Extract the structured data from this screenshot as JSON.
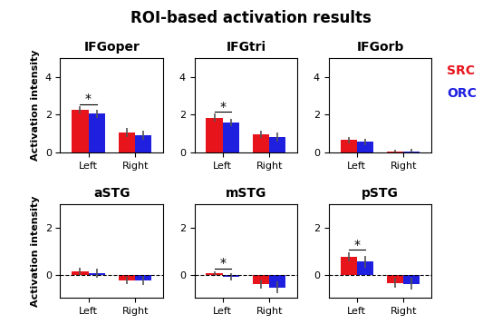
{
  "title": "ROI-based activation results",
  "chart_data": [
    {
      "type": "bar",
      "title": "IFGoper",
      "y_label": "Activation intensity",
      "categories": [
        "Left",
        "Right"
      ],
      "series": [
        {
          "name": "SRC",
          "color": "#e8141c",
          "values": [
            2.25,
            1.05
          ],
          "errors": [
            0.2,
            0.25
          ]
        },
        {
          "name": "ORC",
          "color": "#1f1fe0",
          "values": [
            2.05,
            0.9
          ],
          "errors": [
            0.2,
            0.25
          ]
        }
      ],
      "annotations": [
        {
          "text": "*",
          "category": "Left"
        }
      ],
      "ylim": [
        0,
        5
      ],
      "yticks": [
        0,
        2,
        4
      ]
    },
    {
      "type": "bar",
      "title": "IFGtri",
      "categories": [
        "Left",
        "Right"
      ],
      "series": [
        {
          "name": "SRC",
          "color": "#e8141c",
          "values": [
            1.85,
            0.95
          ],
          "errors": [
            0.2,
            0.2
          ]
        },
        {
          "name": "ORC",
          "color": "#1f1fe0",
          "values": [
            1.6,
            0.8
          ],
          "errors": [
            0.2,
            0.25
          ]
        }
      ],
      "annotations": [
        {
          "text": "*",
          "category": "Left"
        }
      ],
      "ylim": [
        0,
        5
      ],
      "yticks": [
        0,
        2,
        4
      ]
    },
    {
      "type": "bar",
      "title": "IFGorb",
      "legend": "right",
      "categories": [
        "Left",
        "Right"
      ],
      "series": [
        {
          "name": "SRC",
          "color": "#e8141c",
          "values": [
            0.65,
            0.05
          ],
          "errors": [
            0.15,
            0.1
          ]
        },
        {
          "name": "ORC",
          "color": "#1f1fe0",
          "values": [
            0.55,
            0.02
          ],
          "errors": [
            0.15,
            0.15
          ]
        }
      ],
      "ylim": [
        0,
        5
      ],
      "yticks": [
        0,
        2,
        4
      ]
    },
    {
      "type": "bar",
      "title": "aSTG",
      "y_label": "Activation intensity",
      "categories": [
        "Left",
        "Right"
      ],
      "series": [
        {
          "name": "SRC",
          "color": "#e8141c",
          "values": [
            0.15,
            -0.25
          ],
          "errors": [
            0.15,
            0.15
          ]
        },
        {
          "name": "ORC",
          "color": "#1f1fe0",
          "values": [
            0.05,
            -0.25
          ],
          "errors": [
            0.2,
            0.2
          ]
        }
      ],
      "ylim": [
        -1,
        3
      ],
      "yticks": [
        0,
        2
      ]
    },
    {
      "type": "bar",
      "title": "mSTG",
      "categories": [
        "Left",
        "Right"
      ],
      "series": [
        {
          "name": "SRC",
          "color": "#e8141c",
          "values": [
            0.05,
            -0.4
          ],
          "errors": [
            0.1,
            0.2
          ]
        },
        {
          "name": "ORC",
          "color": "#1f1fe0",
          "values": [
            -0.1,
            -0.55
          ],
          "errors": [
            0.15,
            0.25
          ]
        }
      ],
      "annotations": [
        {
          "text": "*",
          "category": "Left"
        }
      ],
      "ylim": [
        -1,
        3
      ],
      "yticks": [
        0,
        2
      ]
    },
    {
      "type": "bar",
      "title": "pSTG",
      "categories": [
        "Left",
        "Right"
      ],
      "series": [
        {
          "name": "SRC",
          "color": "#e8141c",
          "values": [
            0.75,
            -0.35
          ],
          "errors": [
            0.2,
            0.2
          ]
        },
        {
          "name": "ORC",
          "color": "#1f1fe0",
          "values": [
            0.55,
            -0.4
          ],
          "errors": [
            0.25,
            0.25
          ]
        }
      ],
      "annotations": [
        {
          "text": "*",
          "category": "Left"
        }
      ],
      "ylim": [
        -1,
        3
      ],
      "yticks": [
        0,
        2
      ]
    }
  ]
}
